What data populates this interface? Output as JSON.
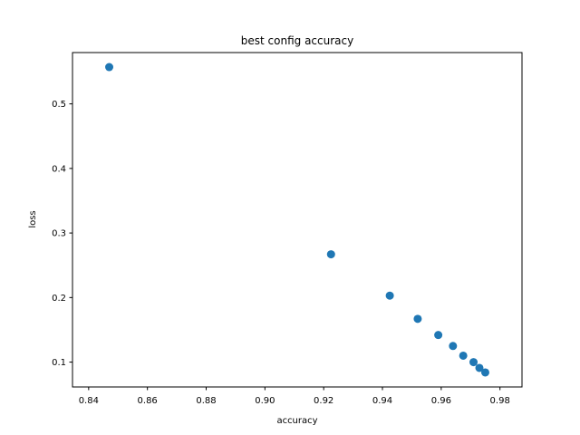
{
  "chart_data": {
    "type": "scatter",
    "title": "best config accuracy",
    "xlabel": "accuracy",
    "ylabel": "loss",
    "xlim": [
      0.8345,
      0.9875
    ],
    "ylim": [
      0.0615,
      0.5795
    ],
    "xticks": [
      0.84,
      0.86,
      0.88,
      0.9,
      0.92,
      0.94,
      0.96,
      0.98
    ],
    "xtick_labels": [
      "0.84",
      "0.86",
      "0.88",
      "0.90",
      "0.92",
      "0.94",
      "0.96",
      "0.98"
    ],
    "yticks": [
      0.1,
      0.2,
      0.3,
      0.4,
      0.5
    ],
    "ytick_labels": [
      "0.1",
      "0.2",
      "0.3",
      "0.4",
      "0.5"
    ],
    "grid": false,
    "color": "#1f77b4",
    "points": [
      {
        "x": 0.847,
        "y": 0.557
      },
      {
        "x": 0.9225,
        "y": 0.267
      },
      {
        "x": 0.9425,
        "y": 0.203
      },
      {
        "x": 0.952,
        "y": 0.167
      },
      {
        "x": 0.959,
        "y": 0.142
      },
      {
        "x": 0.964,
        "y": 0.125
      },
      {
        "x": 0.9675,
        "y": 0.11
      },
      {
        "x": 0.971,
        "y": 0.1
      },
      {
        "x": 0.973,
        "y": 0.091
      },
      {
        "x": 0.975,
        "y": 0.084
      }
    ]
  }
}
